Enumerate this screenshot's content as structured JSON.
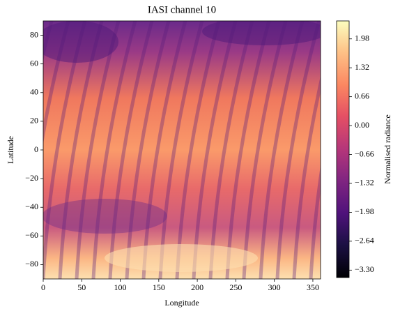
{
  "chart_data": {
    "type": "heatmap",
    "title": "IASI channel 10",
    "x_label": "Longitude",
    "y_label": "Latitude",
    "xlim": [
      0,
      360
    ],
    "ylim": [
      -90,
      90
    ],
    "xticks": [
      0,
      50,
      100,
      150,
      200,
      250,
      300,
      350
    ],
    "yticks": [
      {
        "value": -80,
        "label": "−80"
      },
      {
        "value": -60,
        "label": "−60"
      },
      {
        "value": -40,
        "label": "−40"
      },
      {
        "value": -20,
        "label": "−20"
      },
      0,
      20,
      40,
      60,
      80
    ],
    "colorbar": {
      "label": "Normalised radiance",
      "lim": [
        -3.47,
        2.39
      ],
      "ticks": [
        {
          "value": -3.3,
          "label": "−3.30"
        },
        {
          "value": -2.64,
          "label": "−2.64"
        },
        {
          "value": -1.98,
          "label": "−1.98"
        },
        {
          "value": -1.32,
          "label": "−1.32"
        },
        {
          "value": -0.66,
          "label": "−0.66"
        },
        {
          "value": 0,
          "label": "0.00"
        },
        {
          "value": 0.66,
          "label": "0.66"
        },
        {
          "value": 1.32,
          "label": "1.32"
        },
        {
          "value": 1.98,
          "label": "1.98"
        }
      ]
    }
  }
}
